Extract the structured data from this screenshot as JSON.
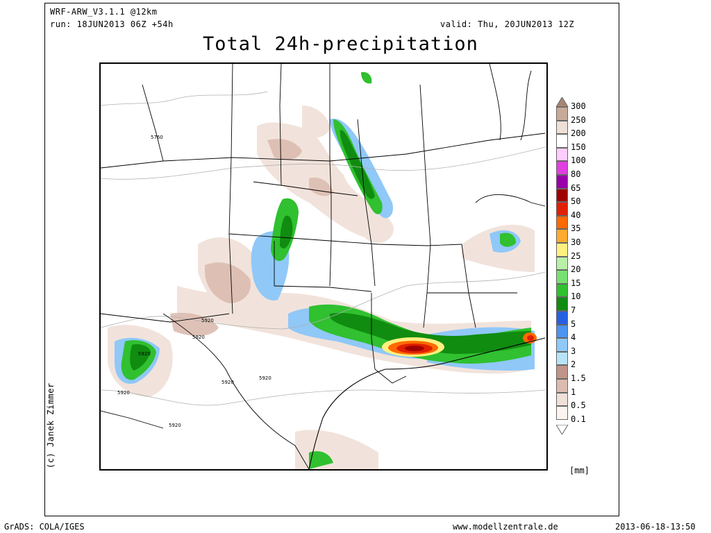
{
  "header": {
    "model": "WRF-ARW_V3.1.1 @12km",
    "run": "run: 18JUN2013 06Z +54h",
    "valid": "valid: Thu, 20JUN2013 12Z",
    "title": "Total 24h-precipitation"
  },
  "copyright": "(c) Janek Zimmer",
  "legend": {
    "unit": "[mm]",
    "levels": [
      {
        "label": "300",
        "color": "#a68673"
      },
      {
        "label": "250",
        "color": "#c8aa98"
      },
      {
        "label": "200",
        "color": "#eee0d6"
      },
      {
        "label": "150",
        "color": "#ffffff"
      },
      {
        "label": "100",
        "color": "#ffccff"
      },
      {
        "label": "80",
        "color": "#e040e0"
      },
      {
        "label": "65",
        "color": "#9900aa"
      },
      {
        "label": "50",
        "color": "#a00000"
      },
      {
        "label": "40",
        "color": "#e02000"
      },
      {
        "label": "35",
        "color": "#ff6a00"
      },
      {
        "label": "30",
        "color": "#ffaa30"
      },
      {
        "label": "25",
        "color": "#fff080"
      },
      {
        "label": "20",
        "color": "#b8f0a8"
      },
      {
        "label": "15",
        "color": "#78e070"
      },
      {
        "label": "10",
        "color": "#30c030"
      },
      {
        "label": "7",
        "color": "#108c10"
      },
      {
        "label": "5",
        "color": "#2860e0"
      },
      {
        "label": "4",
        "color": "#4c94f0"
      },
      {
        "label": "3",
        "color": "#90c8f8"
      },
      {
        "label": "2",
        "color": "#b8e4f8"
      },
      {
        "label": "1.5",
        "color": "#c09488"
      },
      {
        "label": "1",
        "color": "#dcbcb0"
      },
      {
        "label": "0.5",
        "color": "#f0e0d8"
      },
      {
        "label": "0.1",
        "color": "#fcf4f0"
      }
    ]
  },
  "contour_labels": [
    "5760",
    "5920",
    "5920",
    "5920",
    "5920",
    "5920",
    "5920",
    "5920"
  ],
  "footer": {
    "left": "GrADS: COLA/IGES",
    "center": "www.modellzentrale.de",
    "right": "2013-06-18-13:50"
  }
}
